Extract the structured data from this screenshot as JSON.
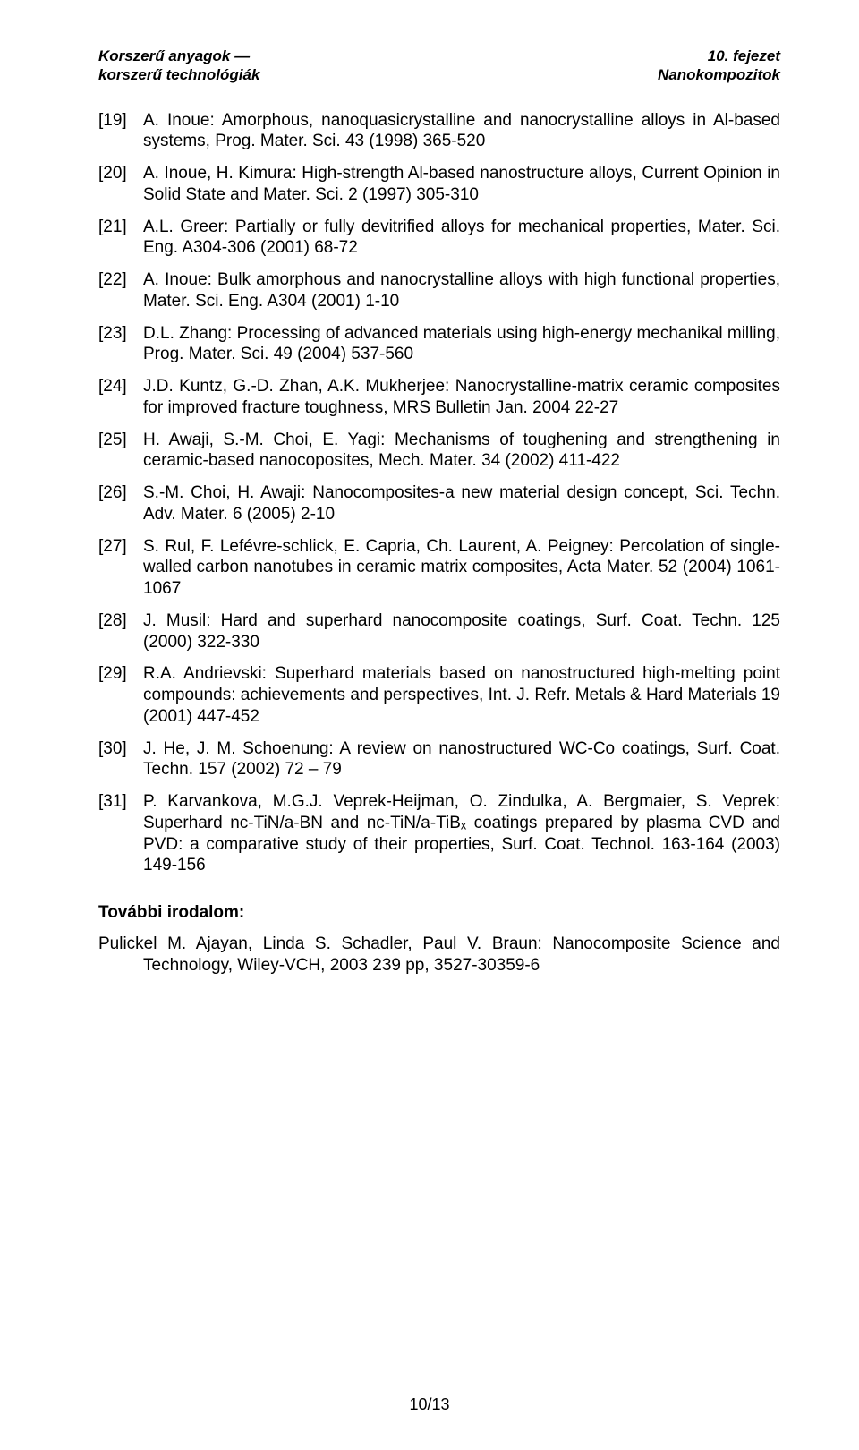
{
  "header": {
    "left_line1": "Korszerű anyagok —",
    "left_line2": "korszerű technológiák",
    "right_line1": "10. fejezet",
    "right_line2": "Nanokompozitok"
  },
  "references": [
    {
      "num": "[19]",
      "text": "A. Inoue: Amorphous, nanoquasicrystalline and nanocrystalline alloys in Al-based systems, Prog. Mater. Sci. 43 (1998) 365-520"
    },
    {
      "num": "[20]",
      "text": "A. Inoue, H. Kimura: High-strength Al-based nanostructure alloys, Current Opinion in Solid State and Mater. Sci. 2 (1997) 305-310"
    },
    {
      "num": "[21]",
      "text": "A.L. Greer: Partially or fully devitrified alloys for mechanical properties, Mater. Sci. Eng. A304-306 (2001) 68-72"
    },
    {
      "num": "[22]",
      "text": "A. Inoue: Bulk amorphous and nanocrystalline alloys with high functional properties, Mater. Sci. Eng. A304 (2001) 1-10"
    },
    {
      "num": "[23]",
      "text": "D.L. Zhang: Processing of advanced materials using high-energy mechanikal milling, Prog. Mater. Sci. 49 (2004) 537-560"
    },
    {
      "num": "[24]",
      "text": "J.D. Kuntz, G.-D. Zhan, A.K. Mukherjee: Nanocrystalline-matrix ceramic composites for improved fracture toughness, MRS Bulletin Jan. 2004 22-27"
    },
    {
      "num": "[25]",
      "text": "H. Awaji, S.-M. Choi, E. Yagi: Mechanisms of toughening and strengthening in ceramic-based nanocoposites, Mech. Mater. 34 (2002) 411-422"
    },
    {
      "num": "[26]",
      "text": "S.-M. Choi, H. Awaji: Nanocomposites-a new material design concept, Sci. Techn. Adv. Mater. 6 (2005) 2-10"
    },
    {
      "num": "[27]",
      "text": "S. Rul, F. Lefévre-schlick, E. Capria, Ch. Laurent, A. Peigney: Percolation of single-walled carbon nanotubes in ceramic matrix composites, Acta Mater. 52 (2004) 1061-1067"
    },
    {
      "num": "[28]",
      "text": "J. Musil: Hard and superhard nanocomposite coatings, Surf. Coat. Techn. 125 (2000) 322-330"
    },
    {
      "num": "[29]",
      "text": "R.A. Andrievski: Superhard materials based on nanostructured high-melting point compounds: achievements and perspectives, Int. J. Refr. Metals & Hard Materials 19 (2001) 447-452"
    },
    {
      "num": "[30]",
      "text": "J. He, J. M. Schoenung: A review on nanostructured WC-Co coatings, Surf. Coat. Techn. 157 (2002) 72 – 79"
    },
    {
      "num": "[31]",
      "text": "P. Karvankova, M.G.J. Veprek-Heijman, O. Zindulka, A. Bergmaier, S. Veprek: Superhard nc-TiN/a-BN and nc-TiN/a-TiBₓ coatings prepared by plasma CVD and PVD: a comparative study of their properties, Surf. Coat. Technol. 163-164 (2003) 149-156"
    }
  ],
  "further": {
    "heading": "További irodalom:",
    "entry": "Pulickel M. Ajayan, Linda S. Schadler, Paul V. Braun: Nanocomposite Science and Technology, Wiley-VCH, 2003 239 pp, 3527-30359-6"
  },
  "page_number": "10/13"
}
